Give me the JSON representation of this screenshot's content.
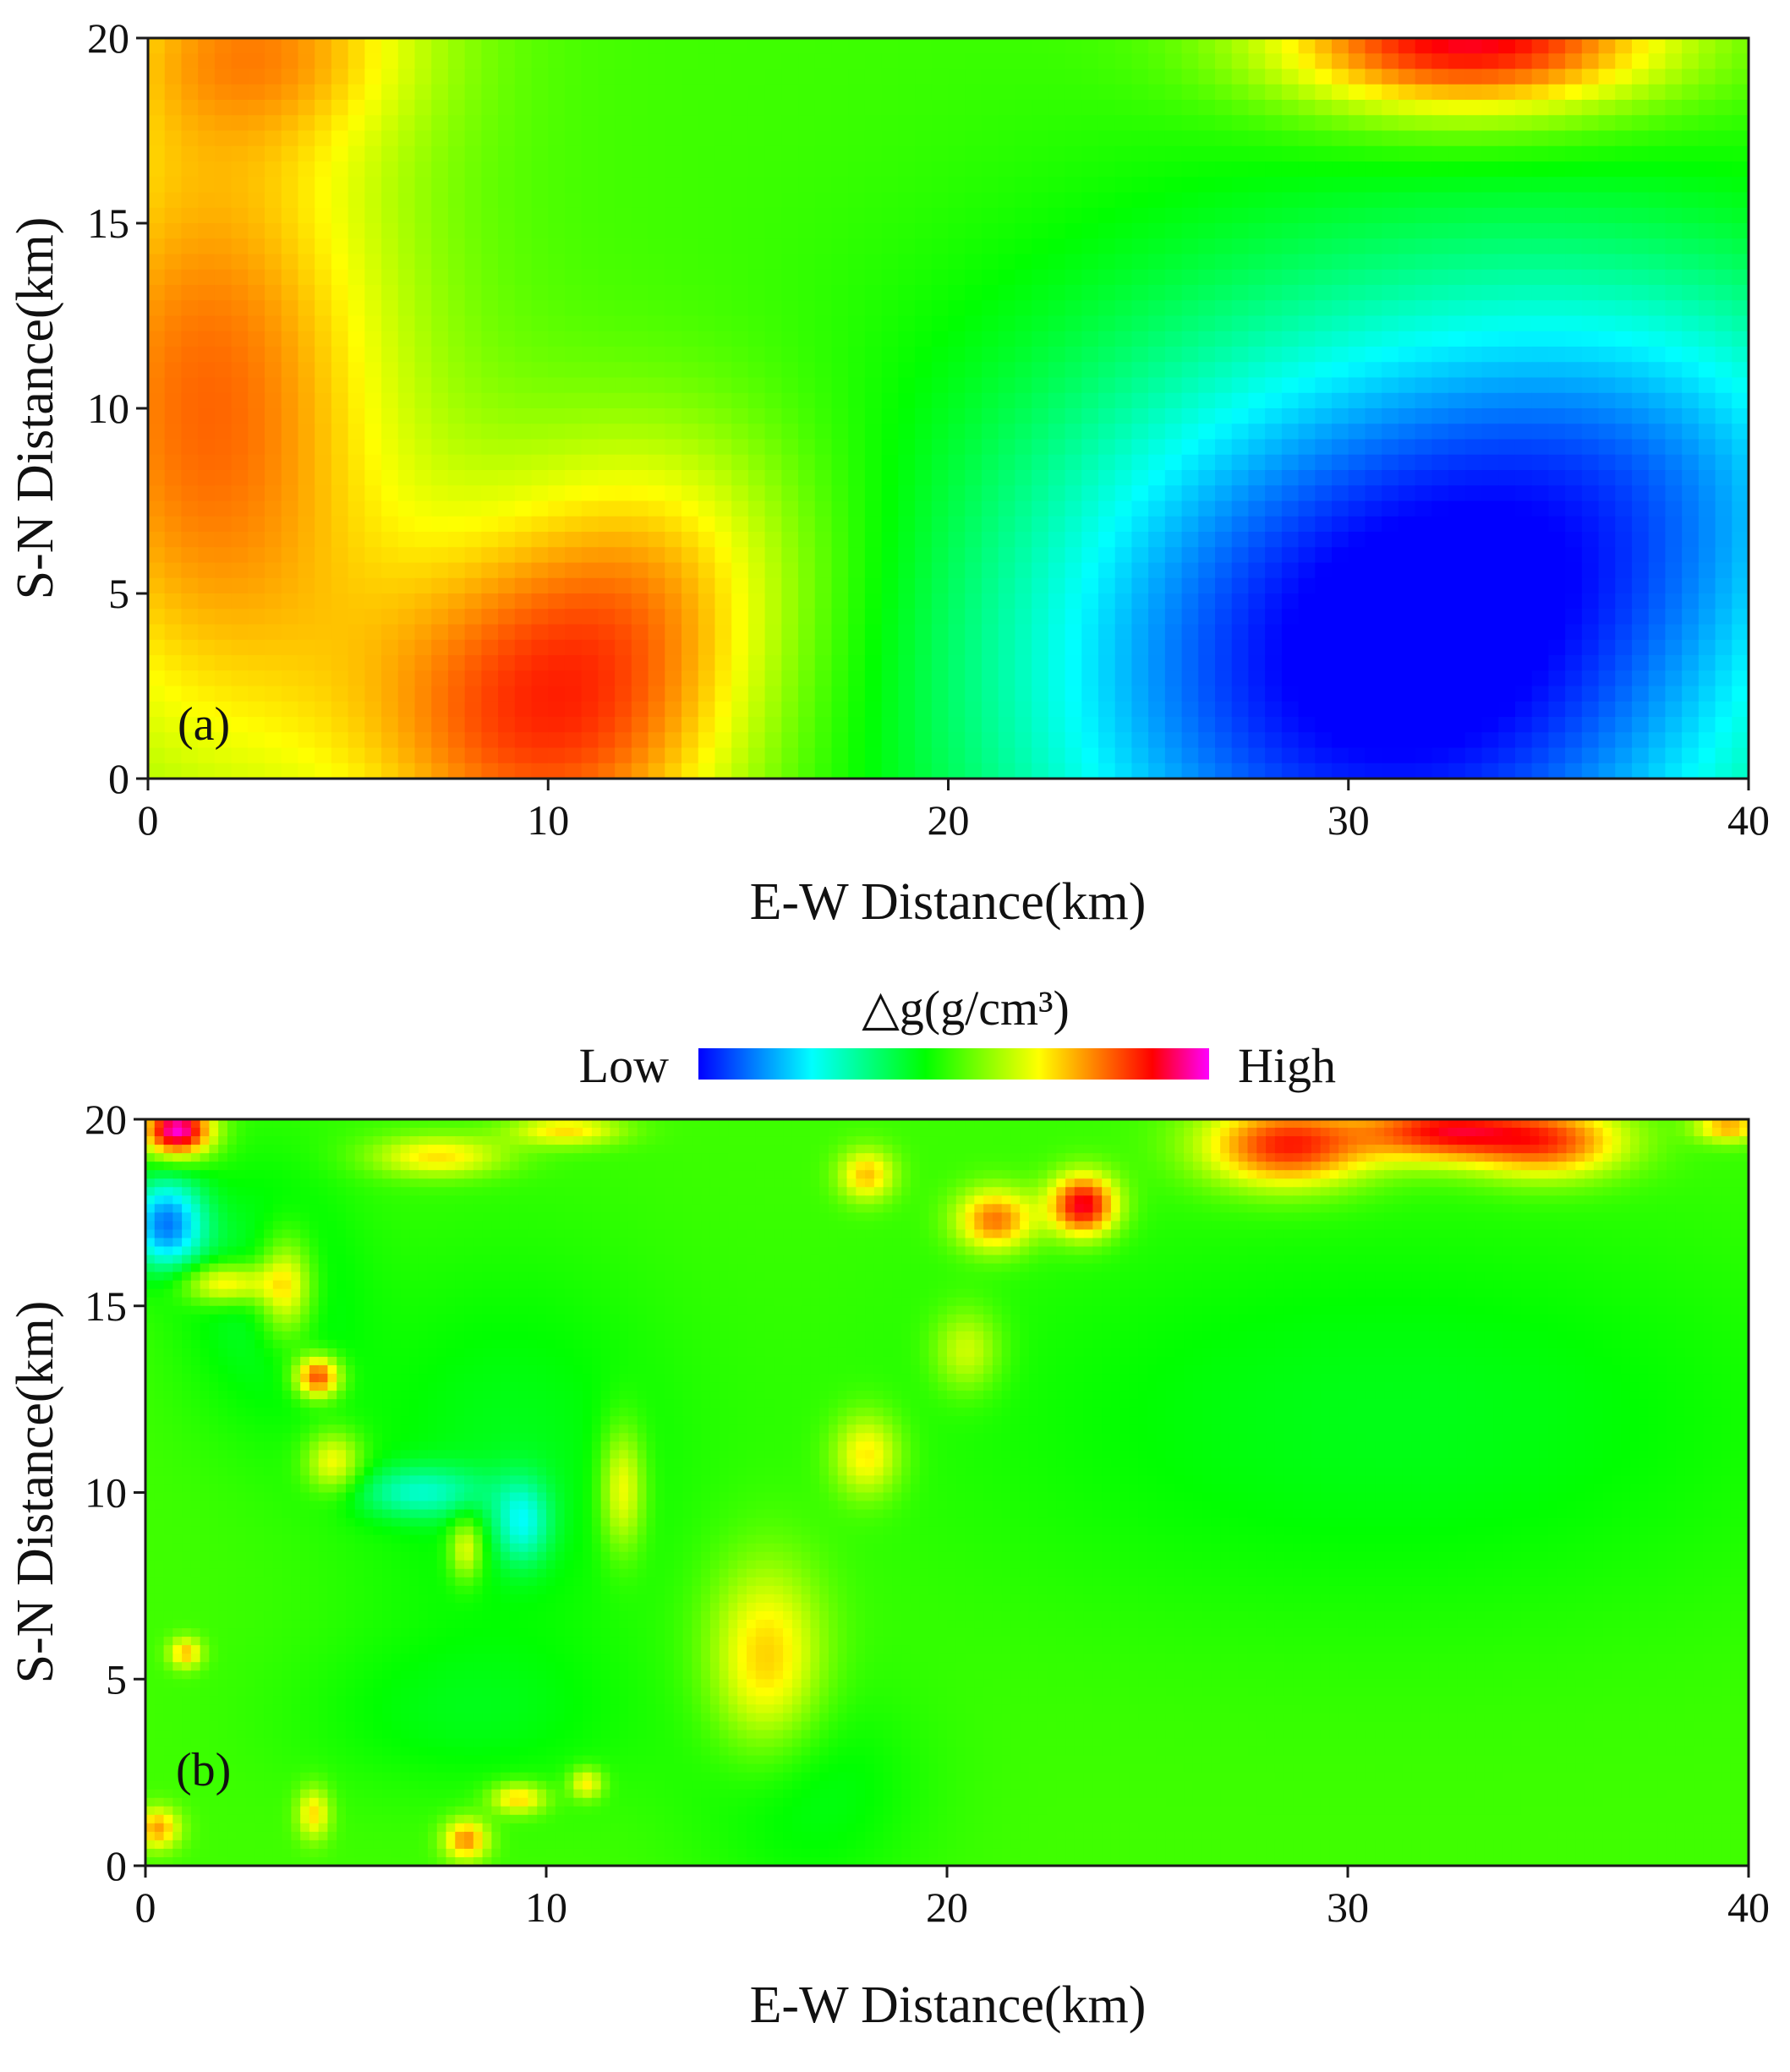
{
  "chart_data": [
    {
      "type": "heatmap",
      "panel_label": "(a)",
      "xlabel": "E-W Distance(km)",
      "ylabel": "S-N Distance(km)",
      "xlim": [
        0,
        40
      ],
      "ylim": [
        0,
        20
      ],
      "xticks": [
        "0",
        "10",
        "20",
        "30",
        "40"
      ],
      "yticks": [
        "0",
        "5",
        "10",
        "15",
        "20"
      ],
      "value_scale": "relative anomaly, -1 (Low) to +1 (High)",
      "anomaly_centers": [
        {
          "x": 10,
          "y": 1.5,
          "sx": 3.5,
          "sy": 3.5,
          "amp": 0.65
        },
        {
          "x": 13,
          "y": 6,
          "sx": 3,
          "sy": 3,
          "amp": 0.3
        },
        {
          "x": 1.5,
          "y": 10,
          "sx": 3.5,
          "sy": 7,
          "amp": 0.6
        },
        {
          "x": 33,
          "y": 20,
          "sx": 3.5,
          "sy": 1.5,
          "amp": 0.85
        },
        {
          "x": 3,
          "y": 20,
          "sx": 3,
          "sy": 2,
          "amp": 0.35
        },
        {
          "x": 31,
          "y": 3,
          "sx": 7,
          "sy": 6.5,
          "amp": -1.05
        },
        {
          "x": 38,
          "y": 9,
          "sx": 5,
          "sy": 4,
          "amp": -0.35
        }
      ]
    },
    {
      "type": "heatmap",
      "panel_label": "(b)",
      "xlabel": "E-W Distance(km)",
      "ylabel": "S-N Distance(km)",
      "xlim": [
        0,
        40
      ],
      "ylim": [
        0,
        20
      ],
      "xticks": [
        "0",
        "10",
        "20",
        "30",
        "40"
      ],
      "yticks": [
        "0",
        "5",
        "10",
        "15",
        "20"
      ],
      "value_scale": "relative anomaly, -1 (Low) to +1 (High)",
      "anomaly_centers": [
        {
          "x": 0.8,
          "y": 19.7,
          "sx": 0.6,
          "sy": 0.5,
          "amp": 1.0
        },
        {
          "x": 0.5,
          "y": 17.2,
          "sx": 0.7,
          "sy": 0.9,
          "amp": -0.75
        },
        {
          "x": 2,
          "y": 15.6,
          "sx": 0.8,
          "sy": 0.4,
          "amp": 0.5
        },
        {
          "x": 3.5,
          "y": 15.5,
          "sx": 0.5,
          "sy": 1,
          "amp": 0.5
        },
        {
          "x": 4.3,
          "y": 13.1,
          "sx": 0.4,
          "sy": 0.4,
          "amp": 0.75
        },
        {
          "x": 6.8,
          "y": 10,
          "sx": 1.2,
          "sy": 0.5,
          "amp": -0.35
        },
        {
          "x": 9.4,
          "y": 9.2,
          "sx": 0.5,
          "sy": 0.8,
          "amp": -0.4
        },
        {
          "x": 11.9,
          "y": 10.1,
          "sx": 0.4,
          "sy": 1.2,
          "amp": 0.4
        },
        {
          "x": 15.5,
          "y": 5.5,
          "sx": 1,
          "sy": 1.8,
          "amp": 0.45
        },
        {
          "x": 18,
          "y": 11,
          "sx": 0.6,
          "sy": 0.8,
          "amp": 0.4
        },
        {
          "x": 21.2,
          "y": 17.3,
          "sx": 0.7,
          "sy": 0.6,
          "amp": 0.6
        },
        {
          "x": 23.4,
          "y": 17.7,
          "sx": 0.6,
          "sy": 0.6,
          "amp": 0.85
        },
        {
          "x": 28.5,
          "y": 19.3,
          "sx": 1.5,
          "sy": 0.8,
          "amp": 0.75
        },
        {
          "x": 32.3,
          "y": 19.7,
          "sx": 1.4,
          "sy": 0.6,
          "amp": 0.7
        },
        {
          "x": 35,
          "y": 19.4,
          "sx": 1.4,
          "sy": 0.7,
          "amp": 0.65
        },
        {
          "x": 39.5,
          "y": 19.8,
          "sx": 0.6,
          "sy": 0.3,
          "amp": 0.5
        },
        {
          "x": 10.5,
          "y": 19.7,
          "sx": 1,
          "sy": 0.3,
          "amp": 0.4
        },
        {
          "x": 7.3,
          "y": 19,
          "sx": 1.2,
          "sy": 0.4,
          "amp": 0.4
        },
        {
          "x": 18,
          "y": 18.5,
          "sx": 0.5,
          "sy": 0.5,
          "amp": 0.45
        },
        {
          "x": 1,
          "y": 5.7,
          "sx": 0.3,
          "sy": 0.3,
          "amp": 0.45
        },
        {
          "x": 0.3,
          "y": 1,
          "sx": 0.4,
          "sy": 0.4,
          "amp": 0.5
        },
        {
          "x": 8,
          "y": 0.7,
          "sx": 0.4,
          "sy": 0.4,
          "amp": 0.55
        },
        {
          "x": 9.3,
          "y": 1.8,
          "sx": 0.5,
          "sy": 0.3,
          "amp": 0.45
        },
        {
          "x": 4.2,
          "y": 1.4,
          "sx": 0.3,
          "sy": 0.5,
          "amp": 0.4
        },
        {
          "x": 11,
          "y": 2.2,
          "sx": 0.3,
          "sy": 0.3,
          "amp": 0.4
        },
        {
          "x": 4.7,
          "y": 10.8,
          "sx": 0.5,
          "sy": 0.6,
          "amp": 0.4
        },
        {
          "x": 8,
          "y": 8.5,
          "sx": 0.3,
          "sy": 0.6,
          "amp": 0.4
        },
        {
          "x": 20.5,
          "y": 13.8,
          "sx": 0.6,
          "sy": 0.8,
          "amp": 0.3
        },
        {
          "x": 3,
          "y": 15.5,
          "sx": 1.5,
          "sy": 2.5,
          "amp": -0.2
        },
        {
          "x": 9,
          "y": 11,
          "sx": 3,
          "sy": 4,
          "amp": -0.15
        },
        {
          "x": 31,
          "y": 12,
          "sx": 8,
          "sy": 4,
          "amp": -0.15
        },
        {
          "x": 16.5,
          "y": 2,
          "sx": 2,
          "sy": 2,
          "amp": -0.15
        },
        {
          "x": 8,
          "y": 4,
          "sx": 3,
          "sy": 1.5,
          "amp": -0.12
        }
      ]
    }
  ],
  "colorbar": {
    "title": "△g(g/cm³)",
    "low_label": "Low",
    "high_label": "High",
    "colors": [
      "#0000ff",
      "#0080ff",
      "#00ffff",
      "#00ff80",
      "#00ff00",
      "#80ff00",
      "#ffff00",
      "#ff8000",
      "#ff0000",
      "#ff00ff"
    ]
  }
}
